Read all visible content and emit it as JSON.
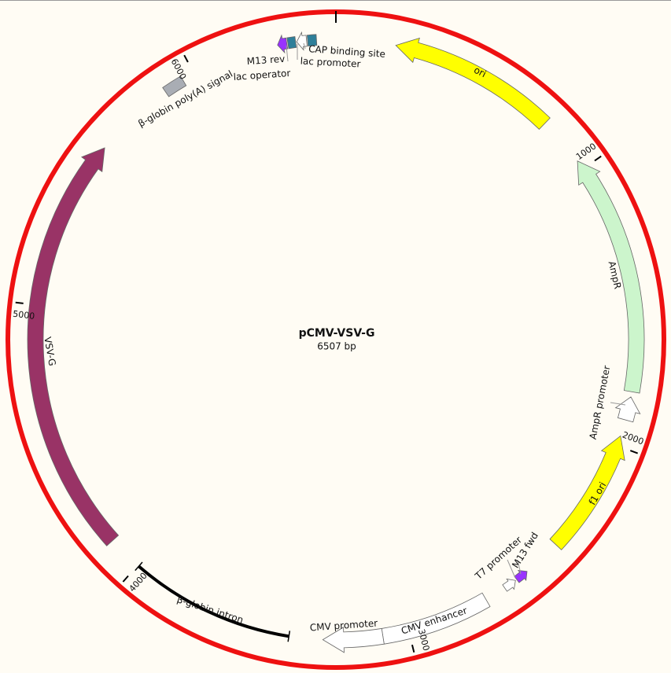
{
  "title": "pCMV-VSV-G",
  "length": {
    "value": 6507,
    "label": "6507 bp"
  },
  "ticks": [
    1000,
    2000,
    3000,
    4000,
    5000,
    6000
  ],
  "features": [
    {
      "label": "ori"
    },
    {
      "label": "AmpR"
    },
    {
      "label": "AmpR promoter"
    },
    {
      "label": "f1 ori"
    },
    {
      "label": "M13 fwd"
    },
    {
      "label": "T7 promoter"
    },
    {
      "label": "CMV enhancer"
    },
    {
      "label": "CMV promoter"
    },
    {
      "label": "β-globin intron"
    },
    {
      "label": "VSV-G"
    },
    {
      "label": "β-globin poly(A) signal"
    },
    {
      "label": "M13 rev"
    },
    {
      "label": "lac operator"
    },
    {
      "label": "lac promoter"
    },
    {
      "label": "CAP binding site"
    }
  ]
}
